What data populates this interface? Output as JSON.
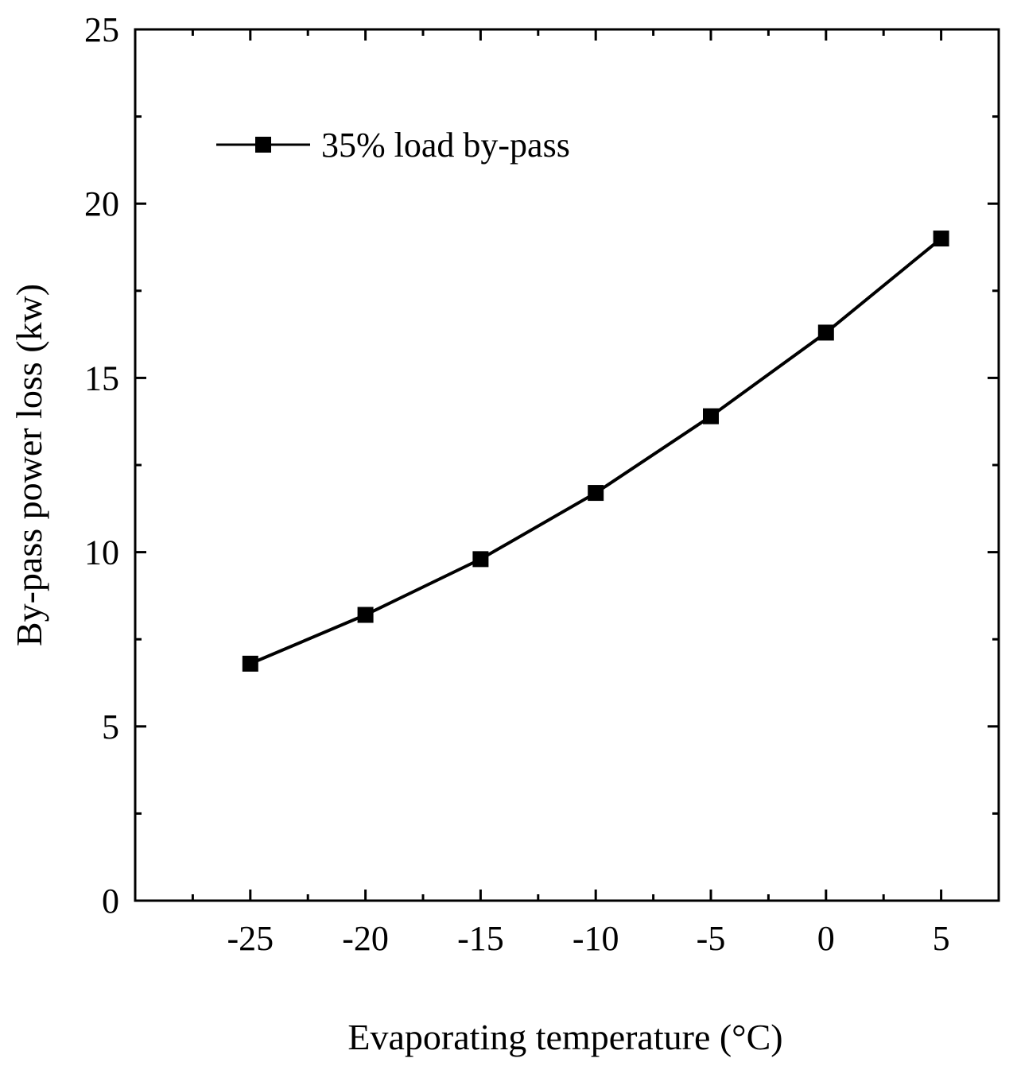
{
  "chart_data": {
    "type": "line",
    "title": "",
    "xlabel": "Evaporating temperature (°C)",
    "ylabel": "By-pass power loss (kw)",
    "xlim": [
      -30,
      7.5
    ],
    "ylim": [
      0,
      25
    ],
    "x_ticks": [
      -25,
      -20,
      -15,
      -10,
      -5,
      0,
      5
    ],
    "x_tick_labels": [
      "-25",
      "-20",
      "-15",
      "-10",
      "-5",
      "0",
      "5"
    ],
    "y_ticks": [
      0,
      5,
      10,
      15,
      20,
      25
    ],
    "y_tick_labels": [
      "0",
      "5",
      "10",
      "15",
      "20",
      "25"
    ],
    "grid": false,
    "legend_position": "top-left",
    "series": [
      {
        "name": "35% load by-pass",
        "marker": "square",
        "color": "#000000",
        "x": [
          -25,
          -20,
          -15,
          -10,
          -5,
          0,
          5
        ],
        "y": [
          6.8,
          8.2,
          9.8,
          11.7,
          13.9,
          16.3,
          19.0
        ]
      }
    ]
  }
}
